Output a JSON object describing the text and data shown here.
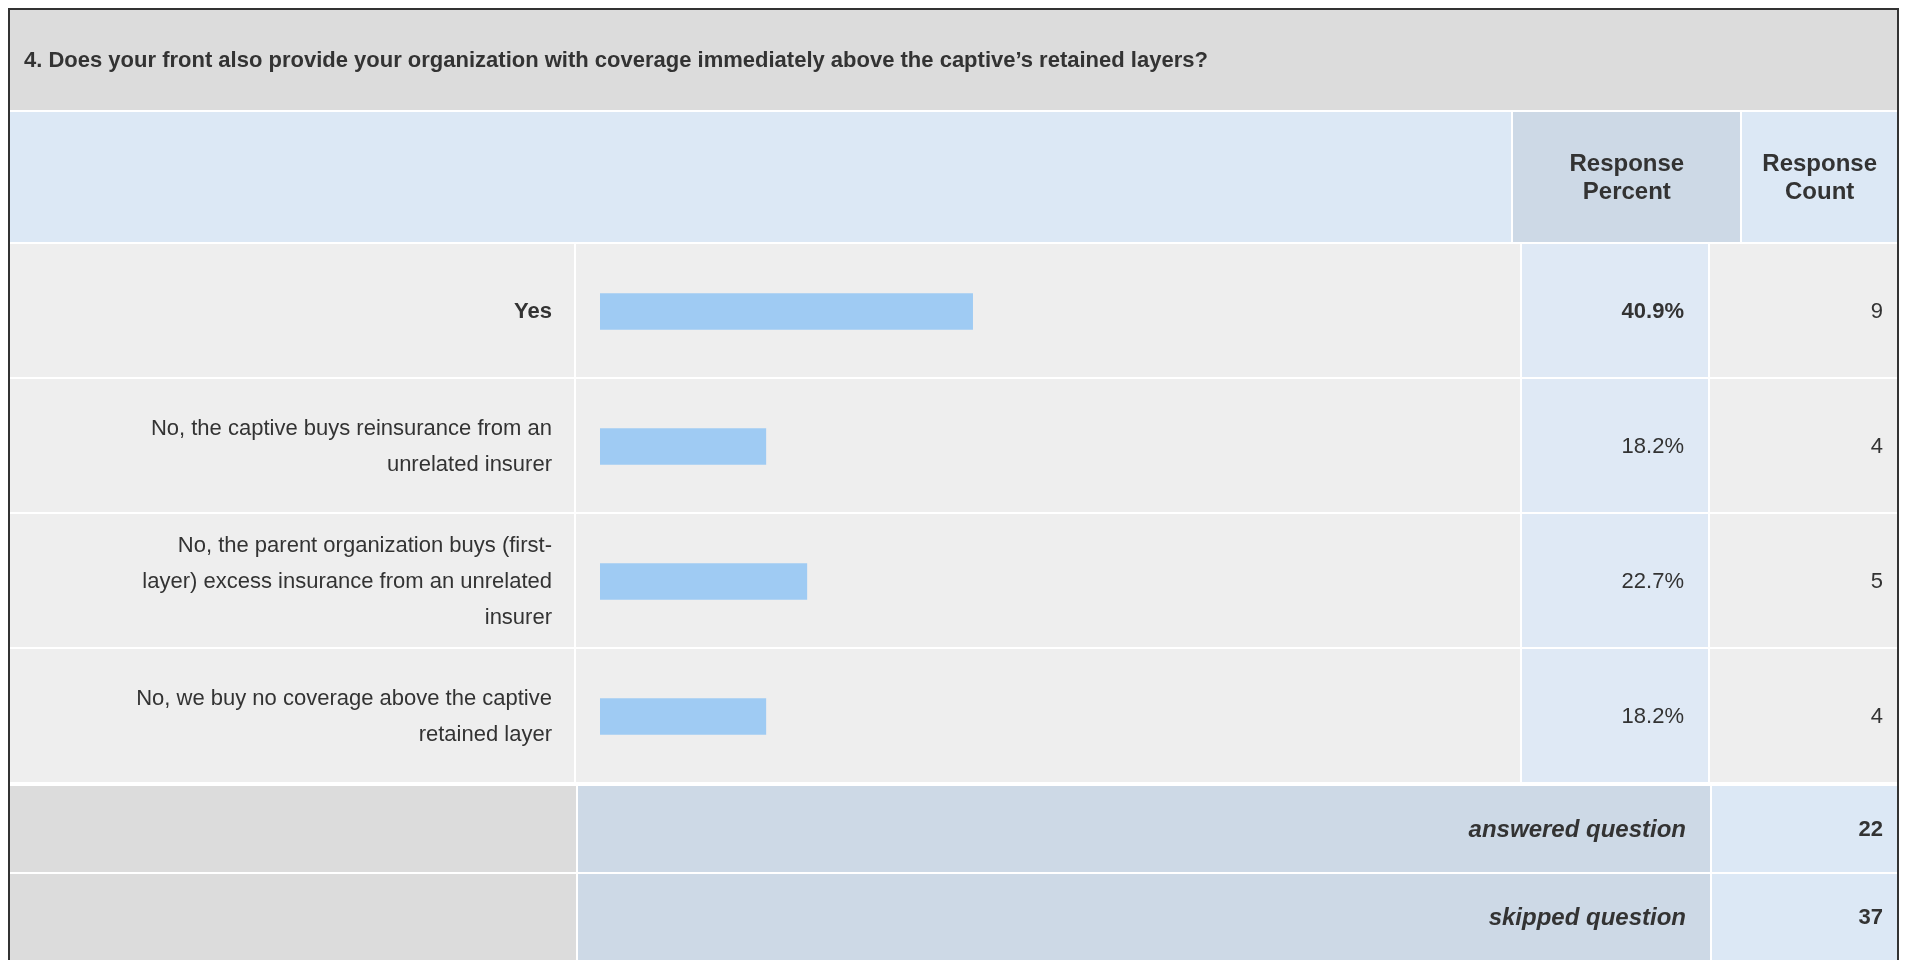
{
  "chart_data": {
    "type": "bar",
    "orientation": "horizontal",
    "title": "4. Does your front also provide your organization with coverage immediately above the captive’s retained layers?",
    "categories": [
      "Yes",
      "No, the captive buys reinsurance from an unrelated insurer",
      "No, the parent organization buys (first-layer) excess insurance from an unrelated insurer",
      "No, we buy no coverage above the captive retained layer"
    ],
    "values": [
      40.9,
      18.2,
      22.7,
      18.2
    ],
    "value_labels": [
      "40.9%",
      "18.2%",
      "22.7%",
      "18.2%"
    ],
    "color": "#9fcbf3",
    "tick_labels": "y",
    "annotations": [
      "Response Percent",
      "Response Count",
      "9",
      "4",
      "5",
      "4",
      "answered question",
      "22",
      "skipped question",
      "37"
    ]
  }
}
